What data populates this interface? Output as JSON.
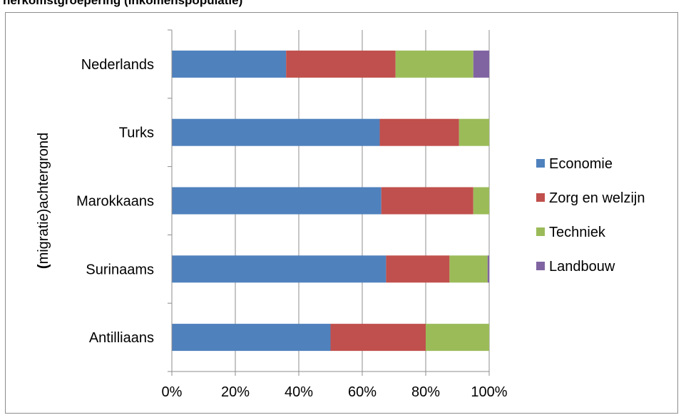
{
  "page_title": "herkomstgroepering (inkomenspopulatie)",
  "chart_data": {
    "type": "bar",
    "orientation": "horizontal",
    "stacked": "percent",
    "ylabel": "(migratie)achtergrond",
    "xlabel": "",
    "categories": [
      "Nederlands",
      "Turks",
      "Marokkaans",
      "Surinaams",
      "Antilliaans"
    ],
    "xlim": [
      0,
      100
    ],
    "x_ticks": [
      "0%",
      "20%",
      "40%",
      "60%",
      "80%",
      "100%"
    ],
    "grid": true,
    "legend_position": "right",
    "series": [
      {
        "name": "Economie",
        "color": "#4f81bd",
        "values": [
          36,
          65.5,
          66,
          67.5,
          50
        ]
      },
      {
        "name": "Zorg en welzijn",
        "color": "#c0504d",
        "values": [
          34.5,
          25,
          29,
          20,
          30
        ]
      },
      {
        "name": "Techniek",
        "color": "#9bbb59",
        "values": [
          24.5,
          9.5,
          5,
          12,
          20
        ]
      },
      {
        "name": "Landbouw",
        "color": "#8064a2",
        "values": [
          5,
          0,
          0,
          0.5,
          0
        ]
      }
    ]
  }
}
